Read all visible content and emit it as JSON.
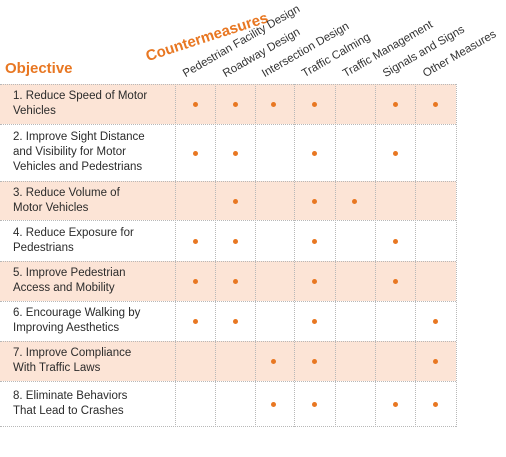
{
  "header": {
    "objective": "Objective",
    "countermeasures": "Countermeasures"
  },
  "columns": [
    "Pedestrian Facility Design",
    "Roadway Design",
    "Intersection Design",
    "Traffic Calming",
    "Traffic Management",
    "Signals and Signs",
    "Other Measures"
  ],
  "rows": [
    {
      "label": "1. Reduce Speed of Motor\nVehicles",
      "marks": [
        true,
        true,
        true,
        true,
        false,
        true,
        true
      ]
    },
    {
      "label": "2. Improve Sight Distance\nand Visibility for Motor\nVehicles and Pedestrians",
      "marks": [
        true,
        true,
        false,
        true,
        false,
        true,
        false
      ]
    },
    {
      "label": "3. Reduce Volume of\nMotor Vehicles",
      "marks": [
        false,
        true,
        false,
        true,
        true,
        false,
        false
      ]
    },
    {
      "label": "4. Reduce Exposure for\nPedestrians",
      "marks": [
        true,
        true,
        false,
        true,
        false,
        true,
        false
      ]
    },
    {
      "label": "5. Improve Pedestrian\nAccess and Mobility",
      "marks": [
        true,
        true,
        false,
        true,
        false,
        true,
        false
      ]
    },
    {
      "label": "6. Encourage Walking by\nImproving Aesthetics",
      "marks": [
        true,
        true,
        false,
        true,
        false,
        false,
        true
      ]
    },
    {
      "label": "7. Improve Compliance\nWith Traffic Laws",
      "marks": [
        false,
        false,
        true,
        true,
        false,
        false,
        true
      ]
    },
    {
      "label": "8. Eliminate Behaviors\nThat Lead to Crashes",
      "marks": [
        false,
        false,
        true,
        true,
        false,
        true,
        true
      ]
    }
  ],
  "colors": {
    "accent": "#e87722",
    "row_shade": "#fce4d6"
  }
}
